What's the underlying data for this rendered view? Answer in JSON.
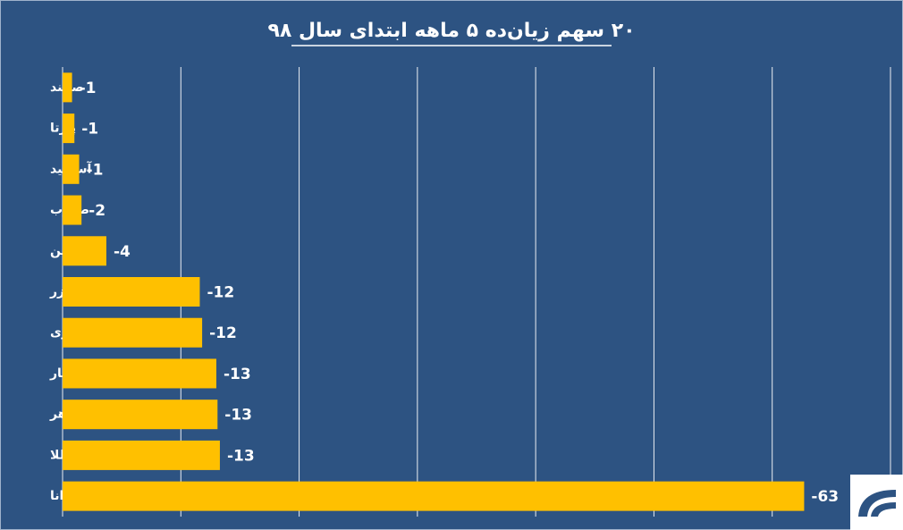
{
  "chart_data": {
    "type": "bar",
    "orientation": "horizontal",
    "title": "۲۰ سهم زیان‌ده ۵ ماهه ابتدای سال ۹۸",
    "categories": [
      "صايند",
      "پارتا",
      "آساميد",
      "صغرب",
      "سنوين",
      "زر",
      "فنرژی",
      "عیار",
      "گوهر",
      "طلا",
      "ودانا"
    ],
    "values": [
      -0.8,
      -1.0,
      -1.4,
      -1.6,
      -3.7,
      -11.6,
      -11.8,
      -13.0,
      -13.1,
      -13.3,
      -62.7
    ],
    "value_labels": [
      "-1",
      "-1",
      "-1",
      "-2",
      "-4",
      "-12",
      "-12",
      "-13",
      "-13",
      "-13",
      "-63"
    ],
    "color": "#ffc000",
    "xlim": [
      0,
      -70
    ],
    "xticks": [
      0,
      -10,
      -20,
      -30,
      -40,
      -50,
      -60,
      -70
    ],
    "grid": true
  }
}
